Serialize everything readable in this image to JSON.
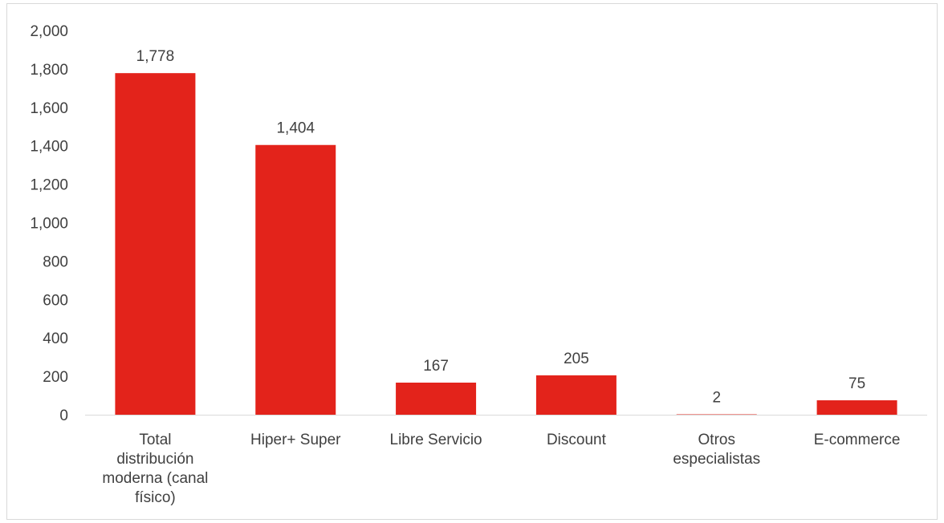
{
  "chart_data": {
    "type": "bar",
    "title": "",
    "xlabel": "",
    "ylabel": "",
    "categories": [
      "Total distribución moderna (canal físico)",
      "Hiper+ Super",
      "Libre Servicio",
      "Discount",
      "Otros especialistas",
      "E-commerce"
    ],
    "category_lines": [
      [
        "Total",
        "distribución",
        "moderna (canal",
        "físico)"
      ],
      [
        "Hiper+ Super"
      ],
      [
        "Libre Servicio"
      ],
      [
        "Discount"
      ],
      [
        "Otros",
        "especialistas"
      ],
      [
        "E-commerce"
      ]
    ],
    "values": [
      1778,
      1404,
      167,
      205,
      2,
      75
    ],
    "data_labels": [
      "1,778",
      "1,404",
      "167",
      "205",
      "2",
      "75"
    ],
    "ylim": [
      0,
      2000
    ],
    "yticks": [
      0,
      200,
      400,
      600,
      800,
      1000,
      1200,
      1400,
      1600,
      1800,
      2000
    ],
    "ytick_labels": [
      "0",
      "200",
      "400",
      "600",
      "800",
      "1,000",
      "1,200",
      "1,400",
      "1,600",
      "1,800",
      "2,000"
    ],
    "grid": false,
    "legend": "none",
    "bar_color": "#e3231b",
    "axis_color": "#d9d9d9"
  }
}
